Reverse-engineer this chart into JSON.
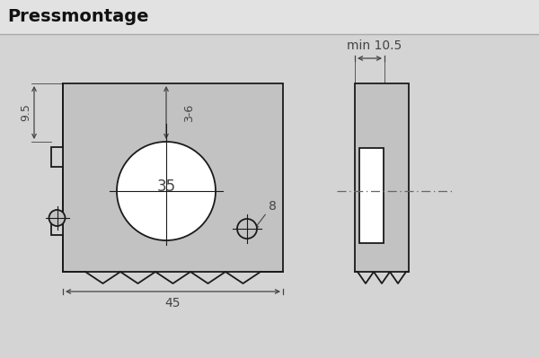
{
  "title": "Pressmontage",
  "bg_color": "#d4d4d4",
  "title_bar_color": "#e2e2e2",
  "plate_color": "#c2c2c2",
  "white": "#ffffff",
  "line_color": "#1a1a1a",
  "dim_color": "#444444",
  "title_color": "#111111",
  "title_fontsize": 14,
  "dim_fontsize": 9,
  "label_35": "35",
  "label_45": "45",
  "label_95": "9.5",
  "label_36": "3-6",
  "label_8": "8",
  "label_min105": "min 10.5"
}
